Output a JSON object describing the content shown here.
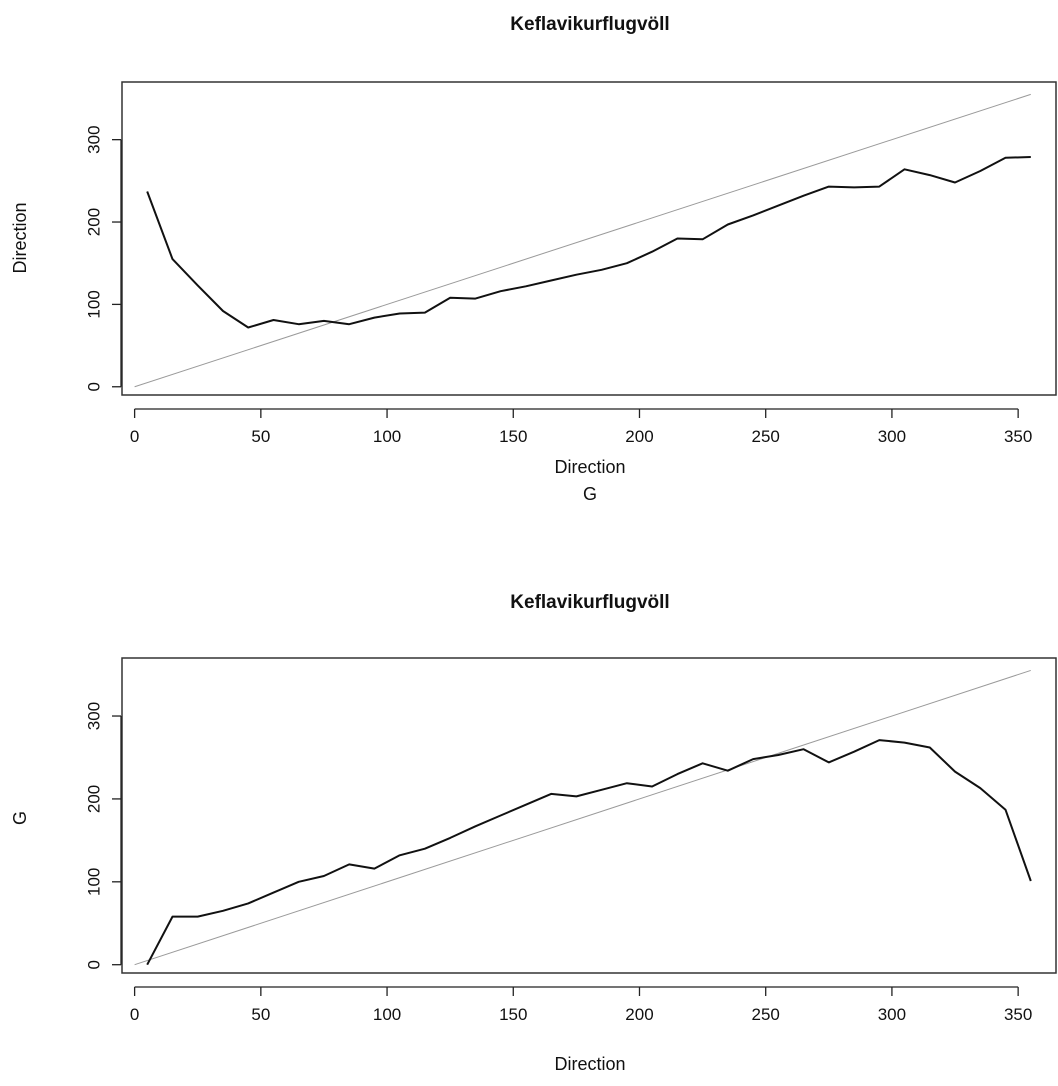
{
  "chart_data": [
    {
      "type": "line",
      "title": "Keflavikurflugvöll",
      "xlabel": "Direction",
      "ylabel": "Direction",
      "sub_label": "G",
      "xlim": [
        -5,
        365
      ],
      "ylim": [
        -10,
        370
      ],
      "xticks": [
        0,
        50,
        100,
        150,
        200,
        250,
        300,
        350
      ],
      "yticks": [
        0,
        100,
        200,
        300
      ],
      "reference_line": {
        "x": [
          0,
          355
        ],
        "y": [
          0,
          355
        ]
      },
      "series": [
        {
          "x": [
            5,
            15,
            25,
            35,
            45,
            55,
            65,
            75,
            85,
            95,
            105,
            115,
            125,
            135,
            145,
            155,
            165,
            175,
            185,
            195,
            205,
            215,
            225,
            235,
            245,
            255,
            265,
            275,
            285,
            295,
            305,
            315,
            325,
            335,
            345,
            355
          ],
          "y": [
            237,
            155,
            123,
            92,
            72,
            81,
            76,
            80,
            76,
            84,
            89,
            90,
            108,
            107,
            116,
            122,
            129,
            136,
            142,
            150,
            164,
            180,
            179,
            197,
            208,
            220,
            232,
            243,
            242,
            243,
            264,
            257,
            248,
            262,
            278,
            279
          ]
        }
      ]
    },
    {
      "type": "line",
      "title": "Keflavikurflugvöll",
      "xlabel": "Direction",
      "ylabel": "G",
      "xlim": [
        -5,
        365
      ],
      "ylim": [
        -10,
        370
      ],
      "xticks": [
        0,
        50,
        100,
        150,
        200,
        250,
        300,
        350
      ],
      "yticks": [
        0,
        100,
        200,
        300
      ],
      "reference_line": {
        "x": [
          0,
          355
        ],
        "y": [
          0,
          355
        ]
      },
      "series": [
        {
          "x": [
            5,
            15,
            25,
            35,
            45,
            55,
            65,
            75,
            85,
            95,
            105,
            115,
            125,
            135,
            145,
            155,
            165,
            175,
            185,
            195,
            205,
            215,
            225,
            235,
            245,
            255,
            265,
            275,
            285,
            295,
            305,
            315,
            325,
            335,
            345,
            355
          ],
          "y": [
            0,
            58,
            58,
            65,
            74,
            87,
            100,
            107,
            121,
            116,
            132,
            140,
            153,
            167,
            180,
            193,
            206,
            203,
            211,
            219,
            215,
            230,
            243,
            234,
            248,
            253,
            260,
            244,
            257,
            271,
            268,
            262,
            233,
            213,
            187,
            101
          ]
        }
      ]
    }
  ]
}
